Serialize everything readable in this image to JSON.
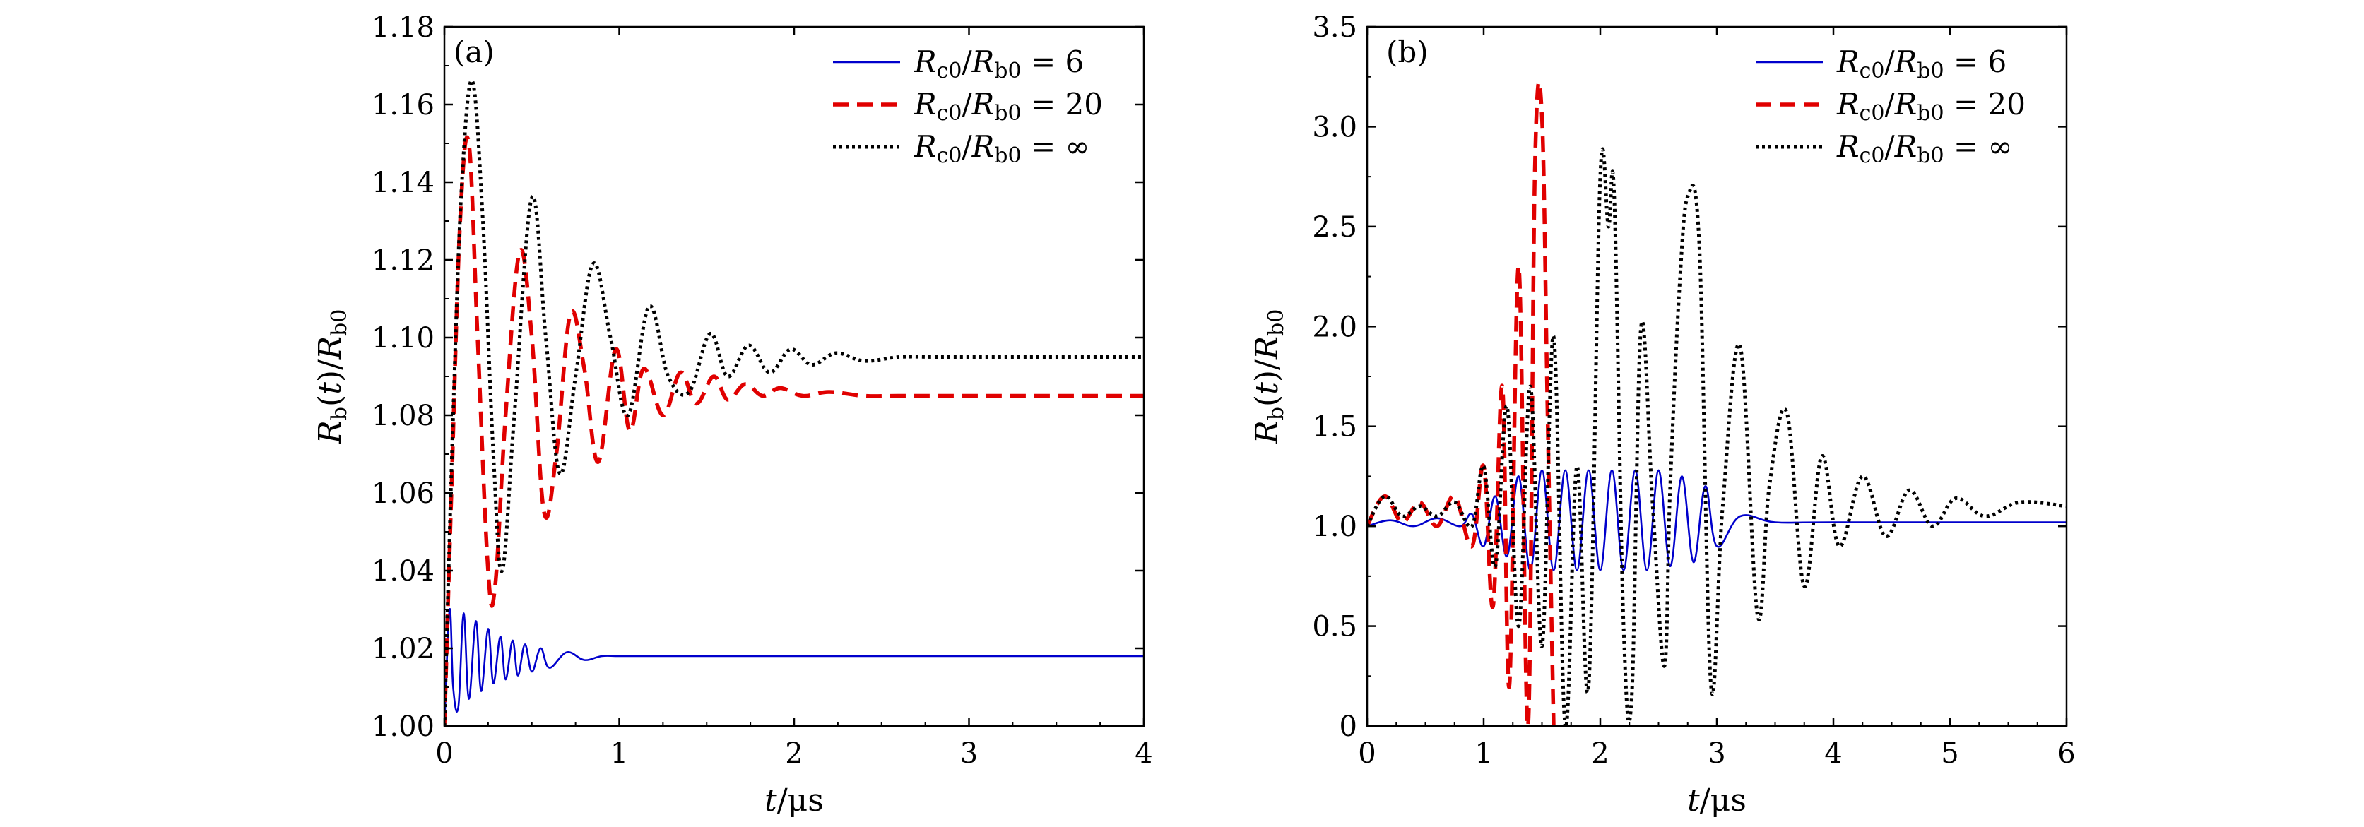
{
  "colors": {
    "blue": "#0000cc",
    "red": "#e00000",
    "black": "#000000"
  },
  "chart_data": [
    {
      "type": "line",
      "panel_label": "(a)",
      "xlabel": "t/μs",
      "ylabel": "Rb(t)/Rb0",
      "xlim": [
        0,
        4
      ],
      "ylim": [
        1.0,
        1.18
      ],
      "xticks": [
        "0",
        "1",
        "2",
        "3",
        "4"
      ],
      "yticks": [
        "1.00",
        "1.02",
        "1.04",
        "1.06",
        "1.08",
        "1.10",
        "1.12",
        "1.14",
        "1.16",
        "1.18"
      ],
      "legend_position": "top-right",
      "series": [
        {
          "name": "Rc0/Rb0 = 6",
          "style": "solid",
          "color": "#0000cc",
          "x": [
            0,
            0.03,
            0.05,
            0.08,
            0.11,
            0.14,
            0.18,
            0.21,
            0.25,
            0.28,
            0.32,
            0.35,
            0.39,
            0.42,
            0.46,
            0.5,
            0.55,
            0.6,
            0.7,
            0.8,
            0.9,
            1.0,
            1.2,
            1.5,
            2.0,
            4.0
          ],
          "y": [
            1.0,
            1.03,
            1.01,
            1.005,
            1.029,
            1.007,
            1.027,
            1.009,
            1.025,
            1.011,
            1.023,
            1.012,
            1.022,
            1.013,
            1.021,
            1.014,
            1.02,
            1.015,
            1.019,
            1.017,
            1.018,
            1.018,
            1.018,
            1.018,
            1.018,
            1.018
          ]
        },
        {
          "name": "Rc0/Rb0 = 20",
          "style": "dashed",
          "color": "#e00000",
          "x": [
            0,
            0.04,
            0.09,
            0.14,
            0.19,
            0.25,
            0.29,
            0.35,
            0.43,
            0.5,
            0.57,
            0.64,
            0.72,
            0.8,
            0.88,
            0.98,
            1.06,
            1.14,
            1.25,
            1.35,
            1.44,
            1.54,
            1.62,
            1.72,
            1.82,
            1.92,
            2.05,
            2.2,
            2.4,
            2.6,
            3.0,
            4.0
          ],
          "y": [
            1.0,
            1.06,
            1.13,
            1.15,
            1.1,
            1.04,
            1.036,
            1.08,
            1.122,
            1.1,
            1.055,
            1.07,
            1.106,
            1.092,
            1.068,
            1.097,
            1.076,
            1.092,
            1.08,
            1.091,
            1.083,
            1.09,
            1.084,
            1.088,
            1.085,
            1.087,
            1.085,
            1.086,
            1.085,
            1.085,
            1.085,
            1.085
          ]
        },
        {
          "name": "Rc0/Rb0 = ∞",
          "style": "dotted",
          "color": "#000000",
          "x": [
            0,
            0.05,
            0.1,
            0.16,
            0.22,
            0.28,
            0.33,
            0.4,
            0.5,
            0.58,
            0.66,
            0.75,
            0.85,
            0.95,
            1.05,
            1.17,
            1.28,
            1.4,
            1.52,
            1.62,
            1.74,
            1.86,
            1.98,
            2.1,
            2.24,
            2.4,
            2.6,
            2.8,
            3.0,
            3.5,
            4.0
          ],
          "y": [
            1.0,
            1.08,
            1.14,
            1.166,
            1.13,
            1.07,
            1.04,
            1.08,
            1.136,
            1.1,
            1.065,
            1.09,
            1.119,
            1.1,
            1.08,
            1.108,
            1.09,
            1.086,
            1.101,
            1.09,
            1.098,
            1.091,
            1.097,
            1.093,
            1.096,
            1.094,
            1.095,
            1.095,
            1.095,
            1.095,
            1.095
          ]
        }
      ]
    },
    {
      "type": "line",
      "panel_label": "(b)",
      "xlabel": "t/μs",
      "ylabel": "Rb(t)/Rb0",
      "xlim": [
        0,
        6
      ],
      "ylim": [
        0,
        3.5
      ],
      "xticks": [
        "0",
        "1",
        "2",
        "3",
        "4",
        "5",
        "6"
      ],
      "yticks": [
        "0",
        "0.5",
        "1.0",
        "1.5",
        "2.0",
        "2.5",
        "3.0",
        "3.5"
      ],
      "legend_position": "top-right",
      "series": [
        {
          "name": "Rc0/Rb0 = 6",
          "style": "solid",
          "color": "#0000cc",
          "x": [
            0,
            0.2,
            0.4,
            0.6,
            0.8,
            0.9,
            1.0,
            1.1,
            1.2,
            1.3,
            1.4,
            1.5,
            1.6,
            1.7,
            1.8,
            1.9,
            2.0,
            2.1,
            2.2,
            2.3,
            2.4,
            2.5,
            2.6,
            2.7,
            2.8,
            2.9,
            3.0,
            3.2,
            3.5,
            4.0,
            6.0
          ],
          "y": [
            1.0,
            1.03,
            1.0,
            1.04,
            1.0,
            1.06,
            0.9,
            1.15,
            0.85,
            1.25,
            0.78,
            1.28,
            0.78,
            1.28,
            0.78,
            1.28,
            0.78,
            1.28,
            0.78,
            1.28,
            0.78,
            1.28,
            0.8,
            1.25,
            0.82,
            1.2,
            0.9,
            1.05,
            1.02,
            1.02,
            1.02
          ]
        },
        {
          "name": "Rc0/Rb0 = 20",
          "style": "dashed",
          "color": "#e00000",
          "x": [
            0,
            0.15,
            0.3,
            0.45,
            0.6,
            0.75,
            0.9,
            1.0,
            1.08,
            1.16,
            1.22,
            1.3,
            1.38,
            1.44,
            1.5,
            1.55,
            1.6
          ],
          "y": [
            1.0,
            1.15,
            1.02,
            1.12,
            1.0,
            1.15,
            0.9,
            1.3,
            0.6,
            1.7,
            0.2,
            2.3,
            0.0,
            2.8,
            3.05,
            1.5,
            0.0
          ]
        },
        {
          "name": "Rc0/Rb0 = ∞",
          "style": "dotted",
          "color": "#000000",
          "x": [
            0,
            0.15,
            0.3,
            0.45,
            0.6,
            0.75,
            0.9,
            1.0,
            1.1,
            1.2,
            1.3,
            1.4,
            1.5,
            1.6,
            1.7,
            1.8,
            1.9,
            2.0,
            2.07,
            2.12,
            2.2,
            2.27,
            2.35,
            2.45,
            2.55,
            2.6,
            2.68,
            2.75,
            2.85,
            2.95,
            3.05,
            3.2,
            3.35,
            3.45,
            3.6,
            3.75,
            3.9,
            4.05,
            4.25,
            4.45,
            4.65,
            4.85,
            5.05,
            5.3,
            5.6,
            6.0
          ],
          "y": [
            1.0,
            1.15,
            1.05,
            1.1,
            1.05,
            1.12,
            1.0,
            1.3,
            0.8,
            1.6,
            0.5,
            1.7,
            0.4,
            1.95,
            0.0,
            1.3,
            0.2,
            2.75,
            2.5,
            2.65,
            0.5,
            0.15,
            2.0,
            1.1,
            0.3,
            1.2,
            2.2,
            2.65,
            2.4,
            0.2,
            1.1,
            1.9,
            0.55,
            1.2,
            1.57,
            0.7,
            1.35,
            0.9,
            1.25,
            0.95,
            1.18,
            1.0,
            1.14,
            1.05,
            1.12,
            1.1
          ]
        }
      ]
    }
  ]
}
